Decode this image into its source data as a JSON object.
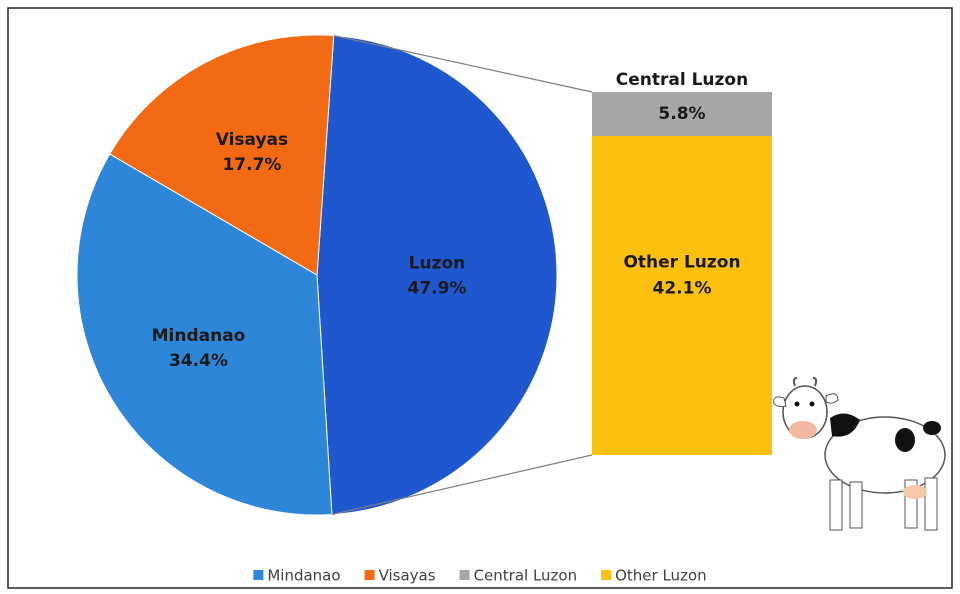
{
  "chart_data": {
    "type": "pie",
    "categories": [
      "Mindanao",
      "Visayas",
      "Luzon"
    ],
    "values": [
      34.4,
      17.7,
      47.9
    ],
    "value_labels": [
      "34.4%",
      "17.7%",
      "47.9%"
    ],
    "colors": [
      "#2e86d8",
      "#f26b14",
      "#1f57cf"
    ],
    "breakdown": {
      "categories": [
        "Central Luzon",
        "Other Luzon"
      ],
      "values": [
        5.8,
        42.1
      ],
      "value_labels": [
        "5.8%",
        "42.1%"
      ],
      "colors": [
        "#a6a6a6",
        "#fcc10e"
      ]
    },
    "legend": "bottom"
  }
}
